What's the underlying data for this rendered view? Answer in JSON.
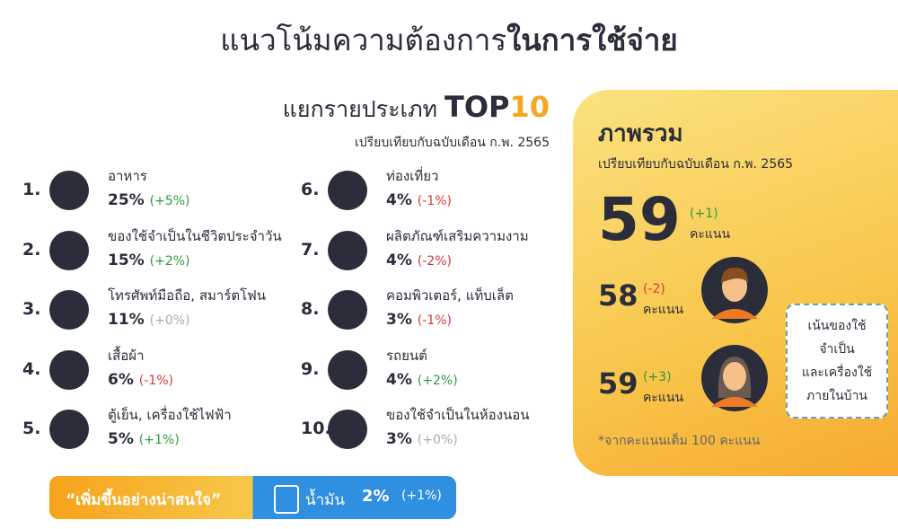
{
  "header": {
    "title": "แนวโน้มความต้องการ",
    "title_bold": "ในการใช้จ่าย"
  },
  "top10": {
    "heading": "แยกรายประเภท",
    "top": "TOP",
    "ten": "10",
    "subtitle": "เปรียบเทียบกับฉบับเดือน ก.พ. 2565",
    "items": [
      {
        "rank": "1.",
        "name": "อาหาร",
        "value": "25%",
        "change": "(+5%)",
        "color": "#2a9d3a"
      },
      {
        "rank": "2.",
        "name": "ของใช้จำเป็นในชีวิตประจำวัน",
        "value": "15%",
        "change": "(+2%)",
        "color": "#2a9d3a"
      },
      {
        "rank": "3.",
        "name": "โทรศัพท์มือถือ, สมาร์ตโฟน",
        "value": "11%",
        "change": "(+0%)",
        "color": "#aaaaaa"
      },
      {
        "rank": "4.",
        "name": "เสื้อผ้า",
        "value": "6%",
        "change": "(-1%)",
        "color": "#d8383a"
      },
      {
        "rank": "5.",
        "name": "ตู้เย็น, เครื่องใช้ไฟฟ้า",
        "value": "5%",
        "change": "(+1%)",
        "color": "#2a9d3a"
      },
      {
        "rank": "6.",
        "name": "ท่องเที่ยว",
        "value": "4%",
        "change": "(-1%)",
        "color": "#d8383a"
      },
      {
        "rank": "7.",
        "name": "ผลิตภัณฑ์เสริมความงาม",
        "value": "4%",
        "change": "(-2%)",
        "color": "#d8383a"
      },
      {
        "rank": "8.",
        "name": "คอมพิวเตอร์, แท็บเล็ต",
        "value": "3%",
        "change": "(-1%)",
        "color": "#d8383a"
      },
      {
        "rank": "9.",
        "name": "รถยนต์",
        "value": "4%",
        "change": "(+2%)",
        "color": "#2a9d3a"
      },
      {
        "rank": "10.",
        "name": "ของใช้จำเป็นในห้องนอน",
        "value": "3%",
        "change": "(+0%)",
        "color": "#aaaaaa"
      }
    ]
  },
  "banner": {
    "label": "“เพิ่มขึ้นอย่างน่าสนใจ”",
    "item": "น้ำมัน",
    "value": "2%",
    "change": "(+1%)"
  },
  "overview": {
    "title": "ภาพรวม",
    "subtitle": "เปรียบเทียบกับฉบับเดือน ก.พ. 2565",
    "total": {
      "score": "59",
      "change": "(+1)",
      "unit": "คะแนน"
    },
    "male": {
      "score": "58",
      "change": "(-2)",
      "unit": "คะแนน"
    },
    "female": {
      "score": "59",
      "change": "(+3)",
      "unit": "คะแนน"
    },
    "callout": [
      "เน้นของใช้",
      "จำเป็น",
      "และเครื่องใช้",
      "ภายในบ้าน"
    ],
    "footnote": "*จากคะแนนเต็ม 100 คะแนน"
  }
}
